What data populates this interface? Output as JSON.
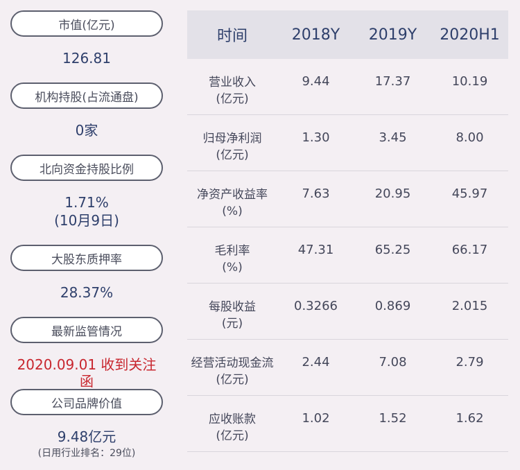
{
  "left_panel": {
    "market_cap": {
      "label": "市值(亿元)",
      "value": "126.81"
    },
    "institutional": {
      "label": "机构持股(占流通盘)",
      "value": "0家"
    },
    "northbound": {
      "label": "北向资金持股比例",
      "value": "1.71%",
      "note": "(10月9日)"
    },
    "pledge": {
      "label": "大股东质押率",
      "value": "28.37%"
    },
    "regulation": {
      "label": "最新监管情况",
      "value": "2020.09.01 收到关注函"
    },
    "brand": {
      "label": "公司品牌价值",
      "value": "9.48亿元",
      "note": "(日用行业排名：29位)"
    }
  },
  "table": {
    "headers": [
      "时间",
      "2018Y",
      "2019Y",
      "2020H1"
    ],
    "rows": [
      {
        "label": "营业收入",
        "unit": "(亿元)",
        "values": [
          "9.44",
          "17.37",
          "10.19"
        ]
      },
      {
        "label": "归母净利润",
        "unit": "(亿元)",
        "values": [
          "1.30",
          "3.45",
          "8.00"
        ]
      },
      {
        "label": "净资产收益率",
        "unit": "(%)",
        "values": [
          "7.63",
          "20.95",
          "45.97"
        ]
      },
      {
        "label": "毛利率",
        "unit": "(%)",
        "values": [
          "47.31",
          "65.25",
          "66.17"
        ]
      },
      {
        "label": "每股收益",
        "unit": "(元)",
        "values": [
          "0.3266",
          "0.869",
          "2.015"
        ]
      },
      {
        "label": "经营活动现金流",
        "unit": "(亿元)",
        "values": [
          "2.44",
          "7.08",
          "2.79"
        ]
      },
      {
        "label": "应收账款",
        "unit": "(亿元)",
        "values": [
          "1.02",
          "1.52",
          "1.62"
        ]
      }
    ]
  },
  "colors": {
    "background": "#f4eff3",
    "value_blue": "#2e3f6b",
    "alert_red": "#c8262e"
  }
}
